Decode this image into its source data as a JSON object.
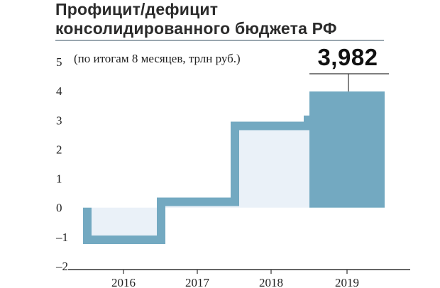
{
  "title": {
    "line1": "Профицит/дефицит",
    "line2": "консолидированного бюджета РФ"
  },
  "subtitle": "(по итогам 8 месяцев, трлн руб.)",
  "highlight_label": "3,982",
  "colors": {
    "band": "#73a9c1",
    "fill_light": "#eaf1f8",
    "fill_dark": "#73a9c1",
    "text": "#222222",
    "axis": "#333333"
  },
  "chart_data": {
    "type": "bar",
    "categories": [
      "2016",
      "2017",
      "2018",
      "2019"
    ],
    "values": [
      -1.1,
      0.2,
      2.8,
      3.982
    ],
    "ylim": [
      -2,
      5
    ],
    "yticks": [
      "5",
      "4",
      "3",
      "2",
      "1",
      "0",
      "–1",
      "–2"
    ],
    "grid": false
  }
}
